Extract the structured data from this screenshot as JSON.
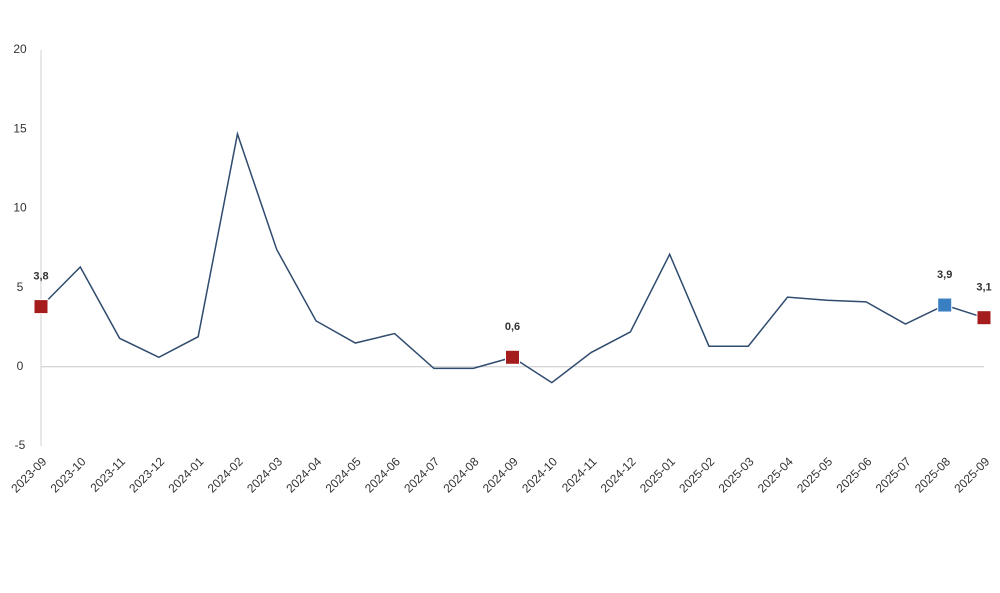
{
  "chart_data": {
    "type": "line",
    "x": [
      "2023-09",
      "2023-10",
      "2023-11",
      "2023-12",
      "2024-01",
      "2024-02",
      "2024-03",
      "2024-04",
      "2024-05",
      "2024-06",
      "2024-07",
      "2024-08",
      "2024-09",
      "2024-10",
      "2024-11",
      "2024-12",
      "2025-01",
      "2025-02",
      "2025-03",
      "2025-04",
      "2025-05",
      "2025-06",
      "2025-07",
      "2025-08",
      "2025-09"
    ],
    "series": [
      {
        "color": "#2f4b6e",
        "values": [
          3.8,
          6.3,
          1.8,
          0.6,
          1.9,
          14.7,
          7.4,
          2.9,
          1.5,
          2.1,
          -0.1,
          -0.1,
          0.6,
          -1.0,
          0.9,
          2.2,
          7.1,
          1.3,
          1.3,
          4.4,
          4.2,
          4.1,
          2.7,
          3.9,
          3.1
        ],
        "value_labels": [
          "3,8",
          null,
          null,
          null,
          null,
          null,
          null,
          null,
          null,
          null,
          null,
          null,
          "0,6",
          null,
          null,
          null,
          null,
          null,
          null,
          null,
          null,
          null,
          null,
          "3,9",
          "3,1"
        ],
        "marker_colors": [
          "#a51c1c",
          null,
          null,
          null,
          null,
          null,
          null,
          null,
          null,
          null,
          null,
          null,
          "#a51c1c",
          null,
          null,
          null,
          null,
          null,
          null,
          null,
          null,
          null,
          null,
          "#3a7fc1",
          "#a51c1c"
        ]
      }
    ],
    "ylim": [
      -5,
      20
    ],
    "yticks": [
      -5,
      0,
      5,
      10,
      15,
      20
    ],
    "grid": false
  }
}
